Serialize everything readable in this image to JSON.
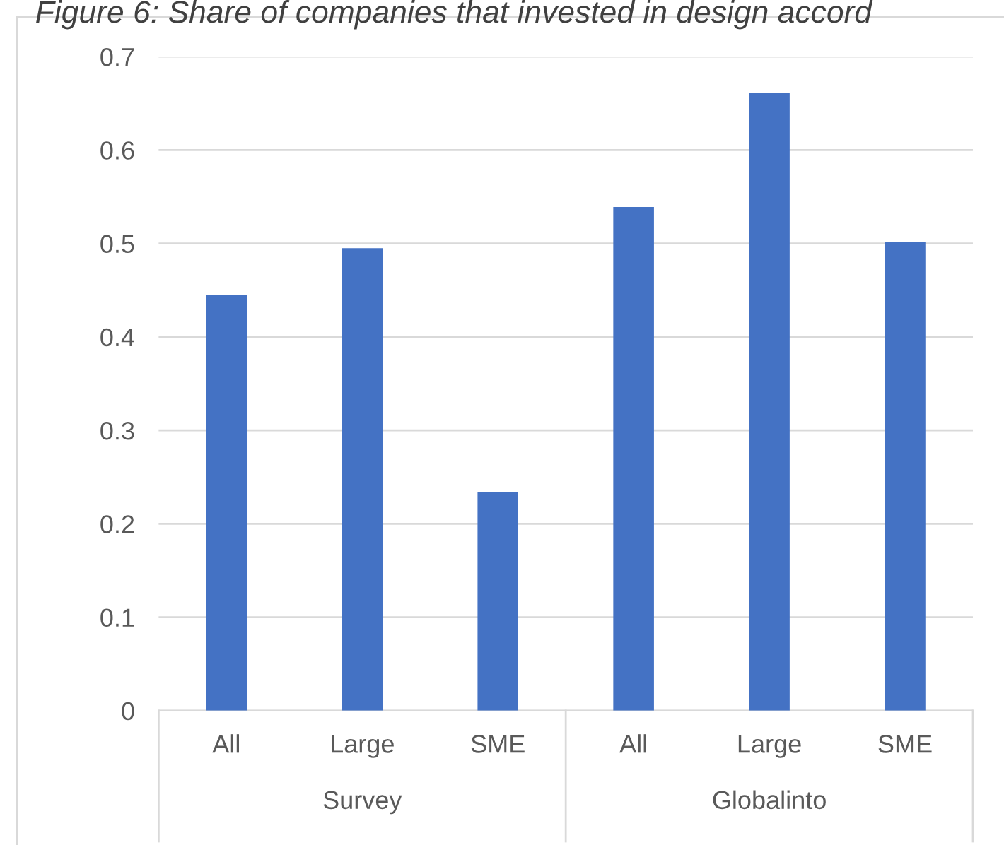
{
  "chart_data": {
    "type": "bar",
    "title": "Figure 6: Share of companies that invested in design accord",
    "categories": [
      "All",
      "Large",
      "SME",
      "All",
      "Large",
      "SME"
    ],
    "values": [
      0.445,
      0.495,
      0.234,
      0.539,
      0.661,
      0.502
    ],
    "color": "#4472c4",
    "annotations": [
      "Survey",
      "Globalinto"
    ],
    "ylim": [
      0,
      0.7
    ],
    "yticks": [
      0,
      0.1,
      0.2,
      0.3,
      0.4,
      0.5,
      0.6,
      0.7
    ],
    "grid": "y"
  }
}
